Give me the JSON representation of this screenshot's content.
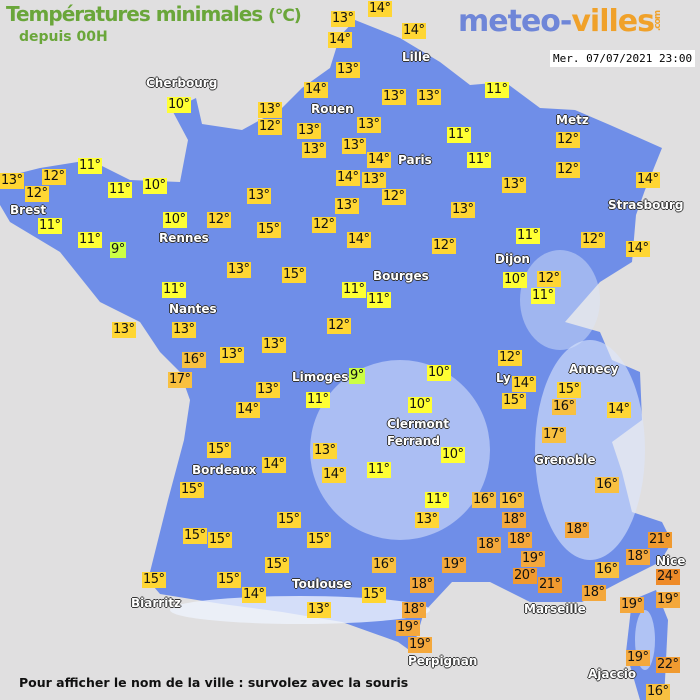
{
  "header": {
    "title": "Températures minimales",
    "unit": "(°C)",
    "subtitle": "depuis 00H"
  },
  "logo": {
    "part1": "meteo-",
    "part2": "villes",
    "part3": ".com"
  },
  "timestamp": "Mer. 07/07/2021 23:00",
  "footer": "Pour afficher le nom de la ville : survolez avec la souris",
  "colors": {
    "background": "#e0dfe0",
    "land": "#6f8ee8",
    "relief": "#dce6fb",
    "t9": "#ccff44",
    "t10_11": "#ffff33",
    "t12_15": "#ffd633",
    "t16_17": "#f8c040",
    "t18_19": "#f4a83c",
    "t20_22": "#f09a30",
    "t24": "#ee8a28"
  },
  "cities": [
    "Cherbourg",
    "Rouen",
    "Lille",
    "Paris",
    "Metz",
    "Strasbourg",
    "Brest",
    "Rennes",
    "Dijon",
    "Bourges",
    "Nantes",
    "Limoges",
    "Ly",
    "Annecy",
    "Clermont",
    "Ferrand",
    "Grenoble",
    "Bordeaux",
    "Toulouse",
    "Biarritz",
    "Marseille",
    "Nice",
    "Perpignan",
    "Ajaccio"
  ],
  "temperatures": [
    13,
    14,
    14,
    14,
    13,
    14,
    10,
    13,
    12,
    13,
    13,
    13,
    11,
    13,
    13,
    13,
    11,
    14,
    13,
    14,
    11,
    12,
    12,
    13,
    14,
    12,
    11,
    13,
    12,
    12,
    11,
    10,
    13,
    13,
    13,
    12,
    14,
    11,
    10,
    12,
    15,
    12,
    14,
    12,
    11,
    11,
    9,
    13,
    15,
    10,
    12,
    11,
    11,
    11,
    11,
    13,
    13,
    12,
    13,
    13,
    16,
    17,
    9,
    10,
    12,
    14,
    15,
    15,
    16,
    14,
    13,
    14,
    11,
    10,
    17,
    15,
    14,
    13,
    14,
    10,
    11,
    16,
    15,
    11,
    13,
    16,
    16,
    18,
    18,
    15,
    15,
    15,
    15,
    18,
    18,
    18,
    21,
    15,
    16,
    19,
    19,
    20,
    21,
    16,
    24,
    15,
    15,
    14,
    15,
    18,
    18,
    19,
    19,
    13,
    18,
    19,
    19,
    19,
    22,
    16
  ]
}
